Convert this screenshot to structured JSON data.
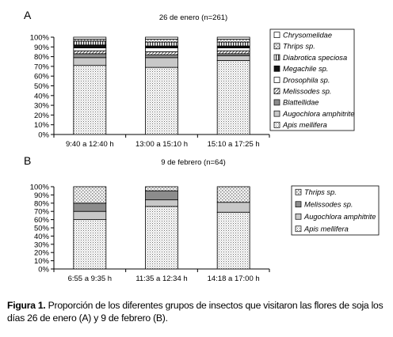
{
  "chart_data": [
    {
      "panel_letter": "A",
      "type": "bar",
      "stacked": true,
      "percent": true,
      "title": "26 de enero  (n=261)",
      "categories": [
        "9:40 a 12:40 h",
        "13:00 a 15:10 h",
        "15:10 a 17:25 h"
      ],
      "yticks": [
        "0%",
        "10%",
        "20%",
        "30%",
        "40%",
        "50%",
        "60%",
        "70%",
        "80%",
        "90%",
        "100%"
      ],
      "ylim": [
        0,
        100
      ],
      "legend_position": "right",
      "series": [
        {
          "name": "Apis mellifera",
          "pattern": "dots",
          "values": [
            71,
            69,
            76
          ]
        },
        {
          "name": "Augochlora amphitrite",
          "pattern": "light-gray",
          "values": [
            8,
            10,
            5
          ]
        },
        {
          "name": "Blattellidae",
          "pattern": "gray",
          "values": [
            4,
            3,
            2
          ]
        },
        {
          "name": "Melissodes sp.",
          "pattern": "hatch",
          "values": [
            3,
            3,
            3
          ]
        },
        {
          "name": "Drosophila sp.",
          "pattern": "white",
          "values": [
            3,
            4,
            3
          ]
        },
        {
          "name": "Megachile sp.",
          "pattern": "black",
          "values": [
            3,
            2,
            2
          ]
        },
        {
          "name": "Diabrotica speciosa",
          "pattern": "vertical",
          "values": [
            4,
            4,
            4
          ]
        },
        {
          "name": "Thrips sp.",
          "pattern": "light-dots",
          "values": [
            2,
            3,
            3
          ]
        },
        {
          "name": "Chrysomelidae",
          "pattern": "white",
          "values": [
            2,
            2,
            2
          ]
        }
      ]
    },
    {
      "panel_letter": "B",
      "type": "bar",
      "stacked": true,
      "percent": true,
      "title": "9 de febrero (n=64)",
      "categories": [
        "6:55 a 9:35 h",
        "11:35 a 12:34 h",
        "14:18 a 17:00 h"
      ],
      "yticks": [
        "0%",
        "10%",
        "20%",
        "30%",
        "40%",
        "50%",
        "60%",
        "70%",
        "80%",
        "90%",
        "100%"
      ],
      "ylim": [
        0,
        100
      ],
      "legend_position": "right",
      "series": [
        {
          "name": "Apis mellifera",
          "pattern": "dots",
          "values": [
            60,
            76,
            69
          ]
        },
        {
          "name": "Augochlora amphitrite",
          "pattern": "light-gray",
          "values": [
            10,
            8,
            12
          ]
        },
        {
          "name": "Melissodes sp.",
          "pattern": "gray",
          "values": [
            10,
            11,
            0
          ]
        },
        {
          "name": "Thrips sp.",
          "pattern": "light-dots",
          "values": [
            20,
            5,
            19
          ]
        }
      ]
    }
  ],
  "caption": {
    "label": "Figura 1.",
    "text": " Proporción de los diferentes grupos de insectos que visitaron las flores de soja los días 26 de enero (A) y 9 de febrero (B)."
  }
}
